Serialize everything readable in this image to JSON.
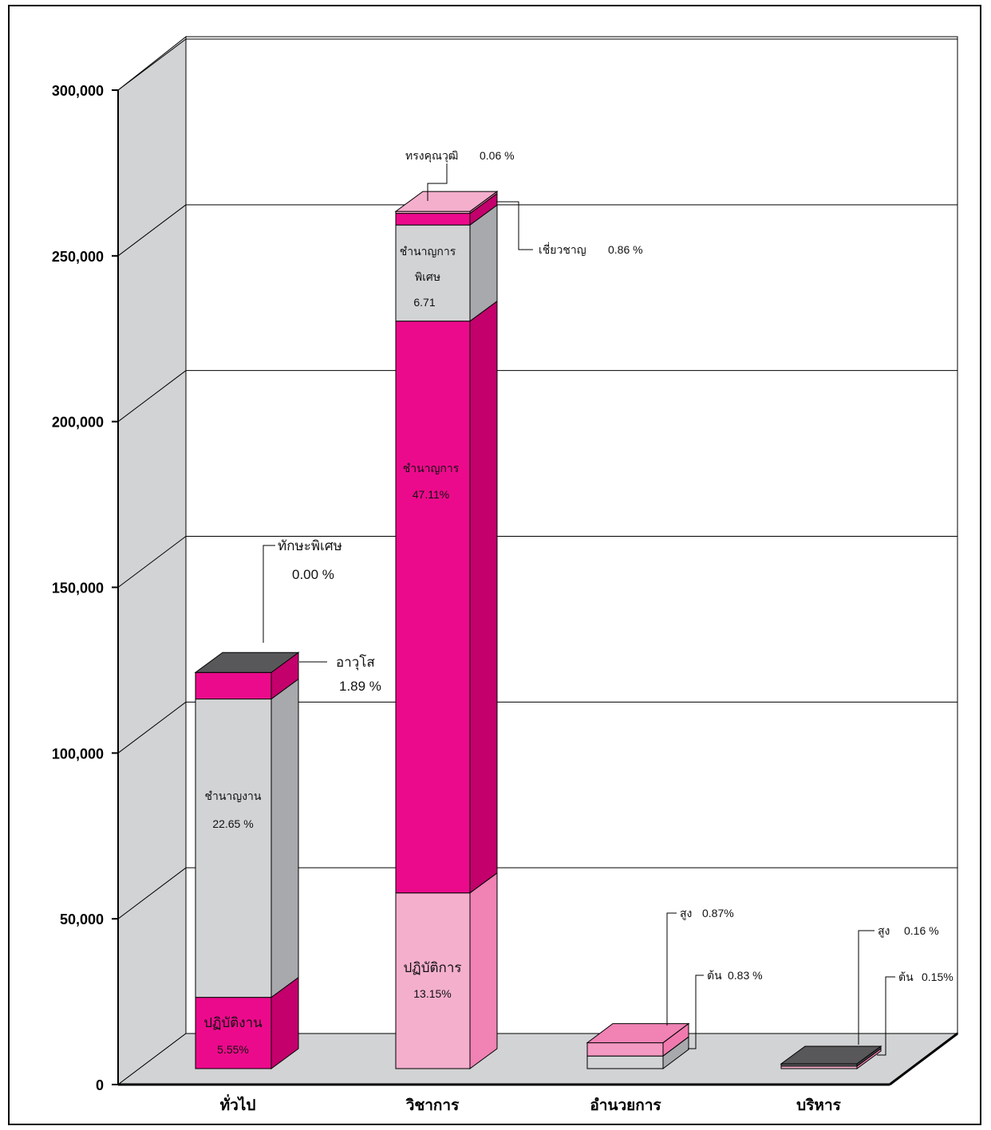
{
  "chart_data": {
    "type": "bar",
    "stacked": true,
    "three_d": true,
    "categories": [
      "ทั่วไป",
      "วิชาการ",
      "อำนวยการ",
      "บริหาร"
    ],
    "ylim": [
      0,
      300000
    ],
    "yticks": [
      "0",
      "50,000",
      "100,000",
      "150,000",
      "200,000",
      "250,000",
      "300,000"
    ],
    "ytick_values": [
      0,
      50000,
      100000,
      150000,
      200000,
      250000,
      300000
    ],
    "grid": true,
    "legend": "none",
    "colors": {
      "light_pink": "#f4afcd",
      "magenta": "#ec0a8c",
      "gray": "#d1d3d4",
      "pink": "#f082b4",
      "dark": "#58585a",
      "floor": "#d1d3d4"
    },
    "segments": [
      {
        "category": "ทั่วไป",
        "name": "ปฏิบัติงาน",
        "pct": "5.55%",
        "value": 21500,
        "color": "magenta"
      },
      {
        "category": "ทั่วไป",
        "name": "ชำนาญงาน",
        "pct": "22.65 %",
        "value": 90000,
        "color": "gray"
      },
      {
        "category": "ทั่วไป",
        "name": "อาวุโส",
        "pct": "1.89 %",
        "value": 8000,
        "color": "magenta"
      },
      {
        "category": "ทั่วไป",
        "name": "ทักษะพิเศษ",
        "pct": "0.00 %",
        "value": 0,
        "color": "dark"
      },
      {
        "category": "วิชาการ",
        "name": "ปฏิบัติการ",
        "pct": "13.15%",
        "value": 53000,
        "color": "light_pink"
      },
      {
        "category": "วิชาการ",
        "name": "ชำนาญการ",
        "pct": "47.11%",
        "value": 172500,
        "color": "magenta"
      },
      {
        "category": "วิชาการ",
        "name": "ชำนาญการ พิเศษ",
        "pct": "6.71",
        "value": 29000,
        "color": "gray"
      },
      {
        "category": "วิชาการ",
        "name": "เชี่ยวชาญ",
        "pct": "0.86 %",
        "value": 3500,
        "color": "magenta"
      },
      {
        "category": "วิชาการ",
        "name": "ทรงคุณวุฒิ",
        "pct": "0.06 %",
        "value": 600,
        "color": "light_pink"
      },
      {
        "category": "อำนวยการ",
        "name": "ต้น",
        "pct": "0.83 %",
        "value": 3800,
        "color": "gray"
      },
      {
        "category": "อำนวยการ",
        "name": "สูง",
        "pct": "0.87%",
        "value": 4000,
        "color": "pink"
      },
      {
        "category": "บริหาร",
        "name": "ต้น",
        "pct": "0.15%",
        "value": 700,
        "color": "light_pink"
      },
      {
        "category": "บริหาร",
        "name": "สูง",
        "pct": "0.16 %",
        "value": 700,
        "color": "dark"
      }
    ],
    "labels": {
      "general_practitioner": "ปฏิบัติงาน",
      "general_practitioner_pct": "5.55%",
      "general_experienced": "ชำนาญงาน",
      "general_experienced_pct": "22.65 %",
      "general_senior": "อาวุโส",
      "general_senior_pct": "1.89 %",
      "general_special": "ทักษะพิเศษ",
      "general_special_pct": "0.00 %",
      "academic_practitioner": "ปฏิบัติการ",
      "academic_practitioner_pct": "13.15%",
      "academic_professional": "ชำนาญการ",
      "academic_professional_pct": "47.11%",
      "academic_senior_line1": "ชำนาญการ",
      "academic_senior_line2": "พิเศษ",
      "academic_senior_pct": "6.71",
      "academic_expert": "เชี่ยวชาญ",
      "academic_expert_pct": "0.86 %",
      "academic_advisory": "ทรงคุณวุฒิ",
      "academic_advisory_pct": "0.06 %",
      "director_high": "สูง",
      "director_high_pct": "0.87%",
      "director_low": "ต้น",
      "director_low_pct": "0.83 %",
      "executive_high": "สูง",
      "executive_high_pct": "0.16 %",
      "executive_low": "ต้น",
      "executive_low_pct": "0.15%"
    }
  }
}
